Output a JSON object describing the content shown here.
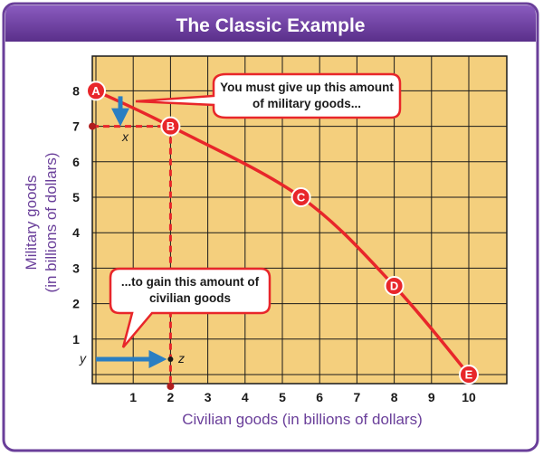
{
  "chart_data": {
    "type": "line",
    "title": "The Classic Example",
    "xlabel": "Civilian goods (in billions of dollars)",
    "ylabel_line1": "Military goods",
    "ylabel_line2": "(in billions of dollars)",
    "xlim": [
      0,
      10
    ],
    "ylim": [
      0,
      8
    ],
    "x_ticks": [
      "1",
      "2",
      "3",
      "4",
      "5",
      "6",
      "7",
      "8",
      "9",
      "10"
    ],
    "y_ticks": [
      "1",
      "2",
      "3",
      "4",
      "5",
      "6",
      "7",
      "8"
    ],
    "grid": true,
    "points": [
      {
        "label": "A",
        "x": 0,
        "y": 8
      },
      {
        "label": "B",
        "x": 2,
        "y": 7
      },
      {
        "label": "C",
        "x": 5.5,
        "y": 5
      },
      {
        "label": "D",
        "x": 8,
        "y": 2.5
      },
      {
        "label": "E",
        "x": 10,
        "y": 0
      }
    ],
    "annotations": {
      "callout_top_line1": "You must give up this amount",
      "callout_top_line2": "of military goods...",
      "callout_bottom_line1": "...to gain this amount of",
      "callout_bottom_line2": "civilian goods",
      "x_marker": "x",
      "y_marker": "y",
      "z_marker": "z"
    },
    "colors": {
      "frame": "#6a3f9a",
      "title_bg": "#6a3f9a",
      "plot_bg": "#f4cf7d",
      "curve": "#e8262a",
      "arrow": "#2a7ec2",
      "axis_label": "#6a3f9a"
    }
  }
}
